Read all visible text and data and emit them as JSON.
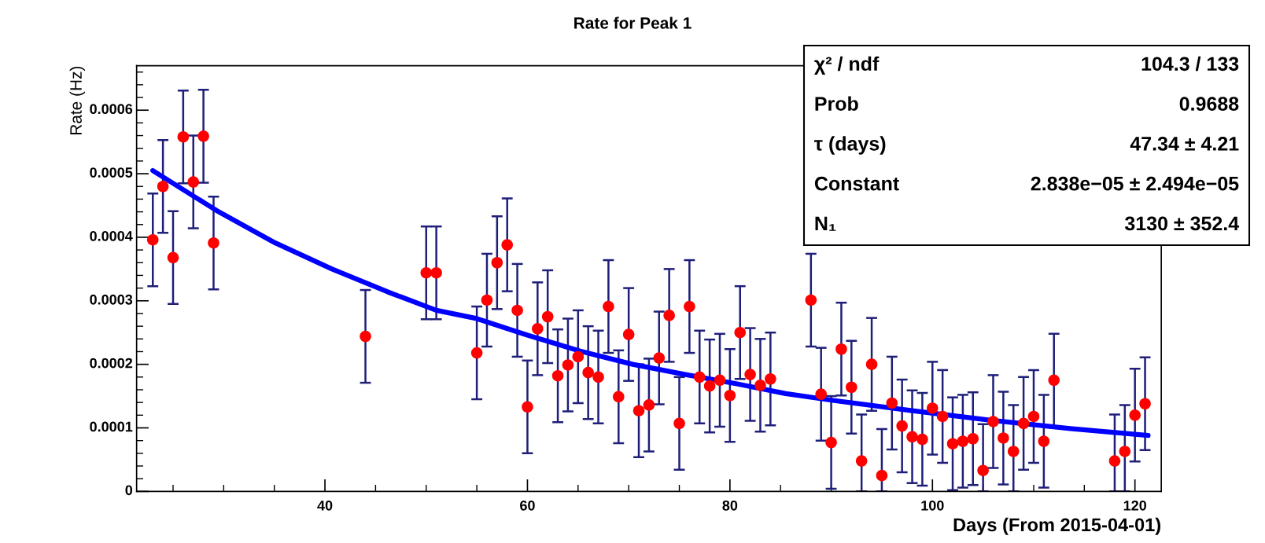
{
  "chart_data": {
    "type": "scatter",
    "title": "Rate for Peak 1",
    "xlabel": "Days (From 2015-04-01)",
    "ylabel": "Rate (Hz)",
    "xlim": [
      21.4,
      122.6
    ],
    "xticks": [
      40,
      60,
      80,
      100,
      120
    ],
    "ylim": [
      0,
      0.00067
    ],
    "yticks": [
      0,
      0.0001,
      0.0002,
      0.0003,
      0.0004,
      0.0005,
      0.0006
    ],
    "grid": false,
    "series": [
      {
        "type": "scatter",
        "marker": "circle",
        "color": "#ff0000",
        "x": [
          23,
          24,
          25,
          26,
          27,
          28,
          29,
          44,
          50,
          51,
          55,
          56,
          57,
          58,
          59,
          60,
          61,
          62,
          63,
          64,
          65,
          66,
          67,
          68,
          69,
          70,
          71,
          72,
          73,
          74,
          75,
          76,
          77,
          78,
          79,
          80,
          81,
          82,
          83,
          84,
          88,
          89,
          90,
          91,
          92,
          93,
          94,
          95,
          96,
          97,
          98,
          99,
          100,
          101,
          102,
          103,
          104,
          105,
          106,
          107,
          108,
          109,
          110,
          111,
          112,
          118,
          119,
          120,
          121
        ],
        "values": [
          0.000396,
          0.00048,
          0.000368,
          0.000558,
          0.000487,
          0.000559,
          0.000391,
          0.000244,
          0.000344,
          0.000344,
          0.000218,
          0.000301,
          0.00036,
          0.000388,
          0.000285,
          0.000133,
          0.000256,
          0.000275,
          0.000182,
          0.000199,
          0.000212,
          0.000187,
          0.00018,
          0.000291,
          0.000149,
          0.000247,
          0.000127,
          0.000136,
          0.00021,
          0.000277,
          0.000107,
          0.000291,
          0.00018,
          0.000166,
          0.000175,
          0.000151,
          0.00025,
          0.000184,
          0.000167,
          0.000177,
          0.000301,
          0.000153,
          7.7e-05,
          0.000224,
          0.000164,
          4.8e-05,
          0.0002,
          2.5e-05,
          0.000139,
          0.000103,
          8.6e-05,
          8.2e-05,
          0.000131,
          0.000118,
          7.5e-05,
          7.9e-05,
          8.3e-05,
          3.3e-05,
          0.00011,
          8.4e-05,
          6.3e-05,
          0.000107,
          0.000118,
          7.9e-05,
          0.000175,
          4.8e-05,
          6.3e-05,
          0.00012,
          0.000138
        ],
        "errors": [
          7.3e-05,
          7.3e-05,
          7.3e-05,
          7.3e-05,
          7.3e-05,
          7.3e-05,
          7.3e-05,
          7.3e-05,
          7.3e-05,
          7.3e-05,
          7.3e-05,
          7.3e-05,
          7.3e-05,
          7.3e-05,
          7.3e-05,
          7.3e-05,
          7.3e-05,
          7.3e-05,
          7.3e-05,
          7.3e-05,
          7.3e-05,
          7.3e-05,
          7.3e-05,
          7.3e-05,
          7.3e-05,
          7.3e-05,
          7.3e-05,
          7.3e-05,
          7.3e-05,
          7.3e-05,
          7.3e-05,
          7.3e-05,
          7.3e-05,
          7.3e-05,
          7.3e-05,
          7.3e-05,
          7.3e-05,
          7.3e-05,
          7.3e-05,
          7.3e-05,
          7.3e-05,
          7.3e-05,
          7.3e-05,
          7.3e-05,
          7.3e-05,
          [
            0,
            0.000121
          ],
          7.3e-05,
          [
            0,
            9.8e-05
          ],
          7.3e-05,
          7.3e-05,
          7.3e-05,
          7.3e-05,
          7.3e-05,
          7.3e-05,
          7.3e-05,
          7.3e-05,
          7.3e-05,
          [
            0,
            0.000106
          ],
          7.3e-05,
          7.3e-05,
          [
            0,
            0.000136
          ],
          7.3e-05,
          7.3e-05,
          7.3e-05,
          7.3e-05,
          [
            0,
            0.000121
          ],
          [
            0,
            0.000136
          ],
          7.3e-05,
          7.3e-05
        ]
      },
      {
        "type": "line",
        "marker": "none",
        "color": "#0000ff",
        "x": [
          23,
          29.3,
          35.1,
          40.7,
          46.2,
          51,
          55,
          60,
          65.2,
          70.4,
          75.6,
          80.8,
          85.5,
          90.3,
          98,
          105.8,
          113.6,
          121.3
        ],
        "values": [
          0.000505,
          0.000442,
          0.000391,
          0.00035,
          0.000314,
          0.000285,
          0.000272,
          0.000246,
          0.000221,
          0.0002,
          0.000184,
          0.000169,
          0.000154,
          0.000143,
          0.000127,
          0.000112,
          9.9e-05,
          8.8e-05
        ]
      }
    ],
    "annotations": [
      "χ² / ndf",
      "104.3 / 133",
      "Prob",
      "0.9688",
      "τ (days)",
      "47.34 ± 4.21",
      "Constant",
      "2.838e−05 ± 2.494e−05",
      "N₁",
      "3130 ± 352.4"
    ]
  }
}
